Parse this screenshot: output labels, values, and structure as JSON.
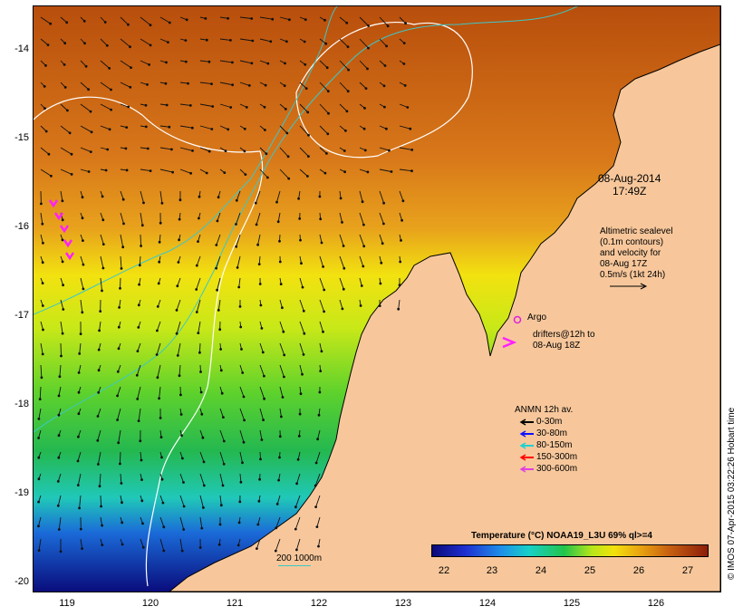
{
  "map": {
    "timestamp": [
      "08-Aug-2014",
      "17:49Z"
    ],
    "altimetry_note": [
      "Altimetric sealevel",
      "(0.1m contours)",
      "and velocity for",
      "08-Aug 17Z",
      "0.5m/s (1kt 24h)"
    ],
    "argo_label": "Argo",
    "drifter_label": [
      "drifters@12h to",
      "08-Aug 18Z"
    ],
    "anmn_title": "ANMN 12h av.",
    "anmn_legend": [
      {
        "label": "0-30m",
        "color": "#000000"
      },
      {
        "label": "30-80m",
        "color": "#1010ff"
      },
      {
        "label": "80-150m",
        "color": "#20d0d0"
      },
      {
        "label": "150-300m",
        "color": "#ff0000"
      },
      {
        "label": "300-600m",
        "color": "#e040e0"
      }
    ],
    "colorbar_title": "Temperature (°C) NOAA19_L3U 69% ql>=4",
    "colorbar_ticks": [
      "22",
      "23",
      "24",
      "25",
      "26",
      "27"
    ],
    "colorbar_range": [
      21.3,
      27.4
    ],
    "scale_label": "200  1000m",
    "credit": "© IMOS 07-Apr-2015 03:22:26 Hobart time",
    "x_ticks": [
      "119",
      "120",
      "121",
      "122",
      "123",
      "124",
      "125",
      "126"
    ],
    "y_ticks": [
      "-14",
      "-15",
      "-16",
      "-17",
      "-18",
      "-19",
      "-20"
    ],
    "lon_range": [
      118.65,
      126.7
    ],
    "lat_range": [
      -20.05,
      -13.55
    ],
    "colors": {
      "land": "#f7c79b",
      "sealevel_contour": "#ffffff",
      "isobath": "#3cc8c8",
      "argo": "#e020e0",
      "drifter": "#ff20ff"
    }
  }
}
